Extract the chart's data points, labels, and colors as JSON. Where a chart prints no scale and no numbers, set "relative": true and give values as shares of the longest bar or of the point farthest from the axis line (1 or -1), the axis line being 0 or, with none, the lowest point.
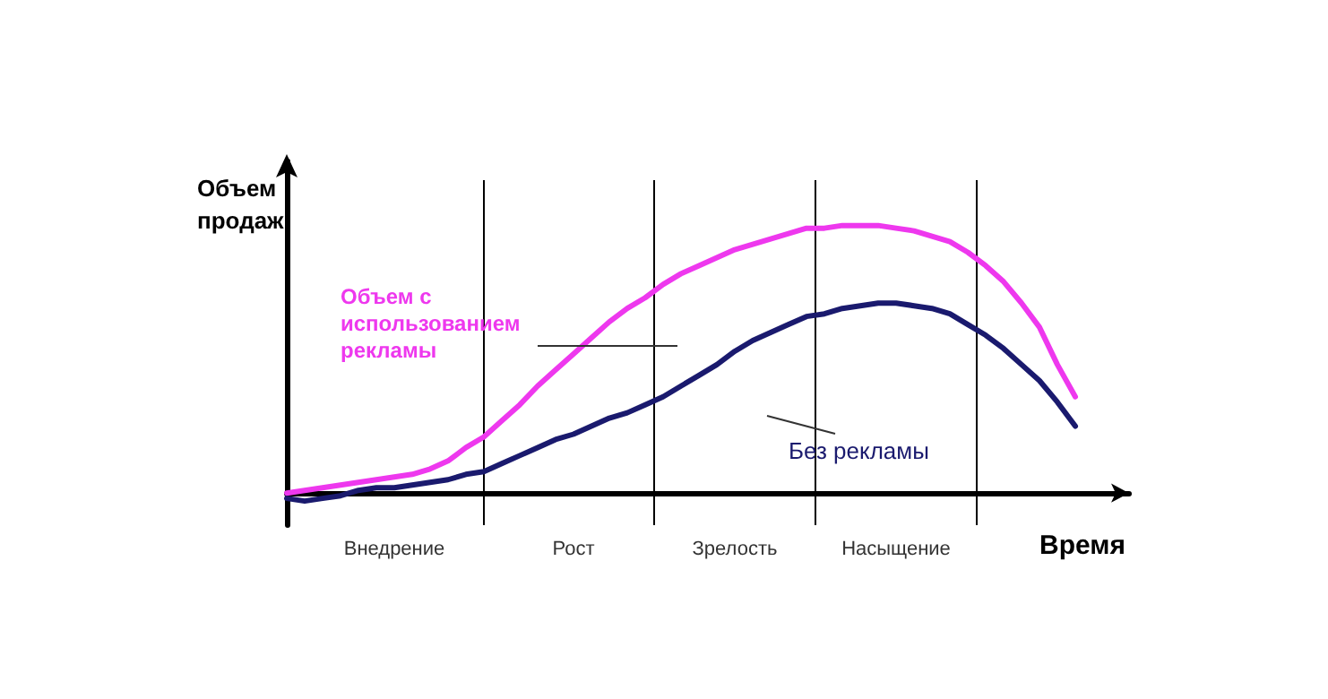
{
  "chart_data": {
    "type": "line",
    "relative": true,
    "ylabel": "Объем продаж",
    "xlabel": "Время",
    "legend": false,
    "grid": "x",
    "marker": "none",
    "line_style": "solid",
    "categories": [
      null,
      null,
      null,
      null,
      null,
      null,
      "Внедрение",
      null,
      null,
      null,
      null,
      null,
      null,
      null,
      null,
      null,
      "Рост",
      null,
      null,
      null,
      null,
      null,
      null,
      null,
      null,
      "Зрелость",
      null,
      null,
      null,
      null,
      null,
      null,
      null,
      null,
      "Насыщение",
      null,
      null,
      null,
      null,
      null,
      null,
      null,
      null,
      null,
      null,
      null,
      null,
      null
    ],
    "series": [
      {
        "name": "Объем с использованием рекламы",
        "color": "#ee38ee",
        "values": [
          0,
          0.01,
          0.02,
          0.03,
          0.04,
          0.05,
          0.06,
          0.07,
          0.09,
          0.12,
          0.17,
          0.21,
          0.27,
          0.33,
          0.4,
          0.46,
          0.52,
          0.58,
          0.64,
          0.69,
          0.73,
          0.78,
          0.82,
          0.85,
          0.88,
          0.91,
          0.93,
          0.95,
          0.97,
          0.99,
          0.99,
          1,
          1,
          1,
          0.99,
          0.98,
          0.96,
          0.94,
          0.9,
          0.85,
          0.79,
          0.71,
          0.62,
          0.48,
          0.36,
          null,
          null,
          null
        ]
      },
      {
        "name": "Без рекламы",
        "color": "#1a1a6e",
        "values": [
          -0.02,
          -0.03,
          -0.02,
          -0.01,
          0.01,
          0.02,
          0.02,
          0.03,
          0.04,
          0.05,
          0.07,
          0.08,
          0.11,
          0.14,
          0.17,
          0.2,
          0.22,
          0.25,
          0.28,
          0.3,
          0.33,
          0.36,
          0.4,
          0.44,
          0.48,
          0.53,
          0.57,
          0.6,
          0.63,
          0.66,
          0.67,
          0.69,
          0.7,
          0.71,
          0.71,
          0.7,
          0.69,
          0.67,
          0.63,
          0.59,
          0.54,
          0.48,
          0.42,
          0.34,
          0.25,
          null,
          null,
          null
        ]
      }
    ]
  }
}
